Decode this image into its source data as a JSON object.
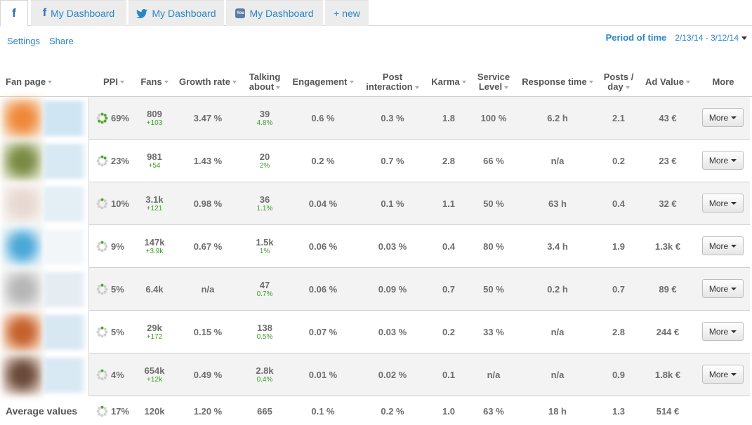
{
  "tabs": [
    {
      "label": "",
      "icon": "facebook-icon",
      "active": true
    },
    {
      "label": "My Dashboard",
      "icon": "facebook-icon"
    },
    {
      "label": "My Dashboard",
      "icon": "twitter-icon"
    },
    {
      "label": "My Dashboard",
      "icon": "youtube-icon"
    },
    {
      "label": "+ new"
    }
  ],
  "links": {
    "settings": "Settings",
    "share": "Share"
  },
  "period": {
    "label": "Period of time",
    "value": "2/13/14 - 3/12/14"
  },
  "columns": {
    "fan_page": "Fan page",
    "ppi": "PPI",
    "fans": "Fans",
    "growth": "Growth rate",
    "talking_1": "Talking",
    "talking_2": "about",
    "engagement": "Engagement",
    "post_1": "Post",
    "post_2": "interaction",
    "karma": "Karma",
    "service_1": "Service",
    "service_2": "Level",
    "response": "Response time",
    "posts_1": "Posts /",
    "posts_2": "day",
    "ad": "Ad Value",
    "more": "More"
  },
  "rows": [
    {
      "ppi": "69%",
      "ppi_value": 0.69,
      "fans": "809",
      "fans_delta": "+103",
      "growth": "3.47 %",
      "talking": "39",
      "talking_pct": "4.8%",
      "engagement": "0.6 %",
      "post": "0.3 %",
      "karma": "1.8",
      "service": "100 %",
      "response": "6.2 h",
      "posts": "2.1",
      "ad": "43 €",
      "more": "More"
    },
    {
      "ppi": "23%",
      "ppi_value": 0.23,
      "fans": "981",
      "fans_delta": "+54",
      "growth": "1.43 %",
      "talking": "20",
      "talking_pct": "2%",
      "engagement": "0.2 %",
      "post": "0.7 %",
      "karma": "2.8",
      "service": "66 %",
      "response": "n/a",
      "posts": "0.2",
      "ad": "23 €",
      "more": "More"
    },
    {
      "ppi": "10%",
      "ppi_value": 0.1,
      "fans": "3.1k",
      "fans_delta": "+121",
      "growth": "0.98 %",
      "talking": "36",
      "talking_pct": "1.1%",
      "engagement": "0.04 %",
      "post": "0.1 %",
      "karma": "1.1",
      "service": "50 %",
      "response": "63 h",
      "posts": "0.4",
      "ad": "32 €",
      "more": "More"
    },
    {
      "ppi": "9%",
      "ppi_value": 0.09,
      "fans": "147k",
      "fans_delta": "+3.9k",
      "growth": "0.67 %",
      "talking": "1.5k",
      "talking_pct": "1%",
      "engagement": "0.06 %",
      "post": "0.03 %",
      "karma": "0.4",
      "service": "80 %",
      "response": "3.4 h",
      "posts": "1.9",
      "ad": "1.3k €",
      "more": "More"
    },
    {
      "ppi": "5%",
      "ppi_value": 0.05,
      "fans": "6.4k",
      "fans_delta": "",
      "growth": "n/a",
      "talking": "47",
      "talking_pct": "0.7%",
      "engagement": "0.06 %",
      "post": "0.09 %",
      "karma": "0.7",
      "service": "50 %",
      "response": "0.2 h",
      "posts": "0.7",
      "ad": "89 €",
      "more": "More"
    },
    {
      "ppi": "5%",
      "ppi_value": 0.05,
      "fans": "29k",
      "fans_delta": "+172",
      "growth": "0.15 %",
      "talking": "138",
      "talking_pct": "0.5%",
      "engagement": "0.07 %",
      "post": "0.03 %",
      "karma": "0.2",
      "service": "33 %",
      "response": "n/a",
      "posts": "2.8",
      "ad": "244 €",
      "more": "More"
    },
    {
      "ppi": "4%",
      "ppi_value": 0.04,
      "fans": "654k",
      "fans_delta": "+12k",
      "growth": "0.49 %",
      "talking": "2.8k",
      "talking_pct": "0.4%",
      "engagement": "0.01 %",
      "post": "0.02 %",
      "karma": "0.1",
      "service": "n/a",
      "response": "n/a",
      "posts": "0.9",
      "ad": "1.8k €",
      "more": "More"
    }
  ],
  "average": {
    "label": "Average values",
    "ppi": "17%",
    "ppi_value": 0.17,
    "fans": "120k",
    "growth": "1.20 %",
    "talking": "665",
    "engagement": "0.1 %",
    "post": "0.2 %",
    "karma": "1.0",
    "service": "63 %",
    "response": "18 h",
    "posts": "1.3",
    "ad": "514 €"
  },
  "colors": {
    "link": "#2a86c8",
    "positive": "#3c9e28",
    "ring_on": "#52a82e",
    "ring_off": "#cfcfcf"
  }
}
